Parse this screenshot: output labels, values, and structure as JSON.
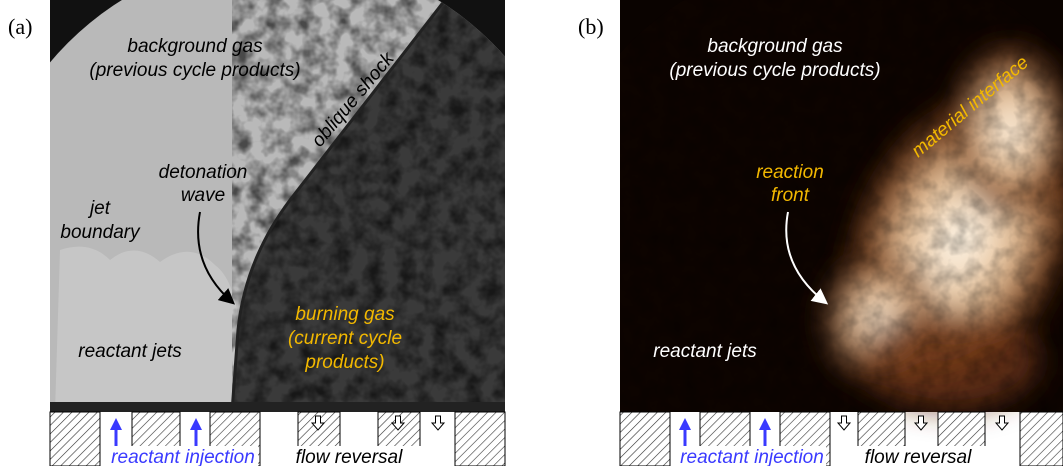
{
  "panels": [
    {
      "label": "(a)",
      "annotations": {
        "background": [
          "background gas",
          "(previous cycle products)"
        ],
        "shock": "oblique shock",
        "wave": [
          "detonation",
          "wave"
        ],
        "jet": [
          "jet",
          "boundary"
        ],
        "burning": [
          "burning gas",
          "(current cycle",
          "products)"
        ],
        "jets": "reactant jets"
      },
      "bottom": {
        "injection": "reactant injection",
        "reversal": "flow reversal"
      }
    },
    {
      "label": "(b)",
      "annotations": {
        "background": [
          "background gas",
          "(previous cycle products)"
        ],
        "interface": "material interface",
        "front": [
          "reaction",
          "front"
        ],
        "jets": "reactant jets"
      },
      "bottom": {
        "injection": "reactant injection",
        "reversal": "flow reversal"
      }
    }
  ]
}
